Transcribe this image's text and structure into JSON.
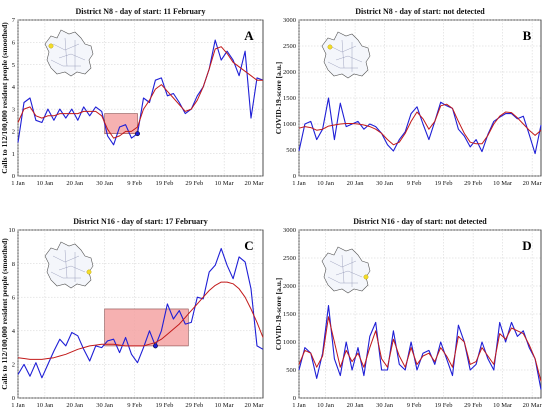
{
  "chart_data": [
    {
      "type": "line",
      "panel_letter": "A",
      "title": "District N8 - day of start: 11 February",
      "ylabel": "Calls to 112/100,000 resident people (smoothed)",
      "xlabel": "",
      "x_ticks": [
        "1 Jan",
        "10 Jan",
        "20 Jan",
        "30 Jan",
        "9 Feb",
        "19 Feb",
        "29 Feb",
        "10 Mar",
        "20 Mar"
      ],
      "y_ticks": [
        0,
        1,
        2,
        3,
        4,
        5,
        6,
        7
      ],
      "ylim": [
        0,
        7
      ],
      "x_days": [
        0,
        9,
        19,
        29,
        39,
        49,
        59,
        69,
        79
      ],
      "xlim": [
        0,
        82
      ],
      "grid": true,
      "highlight": {
        "x0": 29,
        "x1": 40,
        "y0": 1.9,
        "y1": 2.8
      },
      "marker": {
        "x": 40,
        "y": 1.9
      },
      "series": [
        {
          "color": "#1f1fd6",
          "x": [
            0,
            2,
            4,
            6,
            8,
            10,
            12,
            14,
            16,
            18,
            20,
            22,
            24,
            26,
            28,
            30,
            32,
            34,
            36,
            38,
            40,
            42,
            44,
            46,
            48,
            50,
            52,
            54,
            56,
            58,
            60,
            62,
            64,
            66,
            68,
            70,
            72,
            74,
            76,
            78,
            80,
            82
          ],
          "values": [
            1.5,
            3.3,
            3.5,
            2.5,
            2.4,
            3.0,
            2.5,
            3.0,
            2.6,
            3.0,
            2.5,
            3.1,
            2.7,
            3.1,
            2.9,
            1.8,
            1.4,
            2.2,
            2.3,
            1.7,
            1.9,
            3.5,
            3.3,
            4.3,
            4.4,
            3.6,
            3.7,
            3.3,
            2.8,
            3.0,
            3.6,
            4.0,
            4.8,
            6.1,
            5.2,
            5.6,
            5.2,
            4.5,
            5.6,
            2.6,
            4.4,
            4.3
          ]
        },
        {
          "color": "#c21a1a",
          "x": [
            0,
            2,
            4,
            6,
            8,
            10,
            12,
            14,
            16,
            18,
            20,
            22,
            24,
            26,
            28,
            30,
            32,
            34,
            36,
            38,
            40,
            42,
            44,
            46,
            48,
            50,
            52,
            54,
            56,
            58,
            60,
            62,
            64,
            66,
            68,
            70,
            72,
            74,
            76,
            78,
            80,
            82
          ],
          "values": [
            2.4,
            3.0,
            3.1,
            2.7,
            2.6,
            2.7,
            2.7,
            2.8,
            2.8,
            2.8,
            2.8,
            2.9,
            2.9,
            2.9,
            2.7,
            2.1,
            1.7,
            1.8,
            2.0,
            2.0,
            2.2,
            3.0,
            3.4,
            3.9,
            4.1,
            3.8,
            3.5,
            3.2,
            2.9,
            3.0,
            3.4,
            4.0,
            4.8,
            5.7,
            5.8,
            5.5,
            5.1,
            4.9,
            4.7,
            4.5,
            4.3,
            4.3
          ]
        }
      ]
    },
    {
      "type": "line",
      "panel_letter": "B",
      "title": "District N8 - day of start: not detected",
      "ylabel": "COVID-19-score [a.u.]",
      "xlabel": "",
      "x_ticks": [
        "1 Jan",
        "10 Jan",
        "20 Jan",
        "30 Jan",
        "9 Feb",
        "19 Feb",
        "29 Feb",
        "10 Mar",
        "20 Mar"
      ],
      "y_ticks": [
        0,
        500,
        1000,
        1500,
        2000,
        2500,
        3000
      ],
      "ylim": [
        0,
        3000
      ],
      "x_days": [
        0,
        9,
        19,
        29,
        39,
        49,
        59,
        69,
        79
      ],
      "xlim": [
        0,
        82
      ],
      "grid": true,
      "series": [
        {
          "color": "#1f1fd6",
          "x": [
            0,
            2,
            4,
            6,
            8,
            10,
            12,
            14,
            16,
            18,
            20,
            22,
            24,
            26,
            28,
            30,
            32,
            34,
            36,
            38,
            40,
            42,
            44,
            46,
            48,
            50,
            52,
            54,
            56,
            58,
            60,
            62,
            64,
            66,
            68,
            70,
            72,
            74,
            76,
            78,
            80,
            82
          ],
          "values": [
            480,
            1000,
            1050,
            700,
            900,
            1500,
            700,
            1400,
            950,
            1000,
            1050,
            900,
            1000,
            950,
            820,
            600,
            480,
            700,
            850,
            1200,
            1330,
            1000,
            700,
            1050,
            1420,
            1350,
            1300,
            900,
            770,
            560,
            700,
            470,
            800,
            1050,
            1130,
            1200,
            1200,
            1100,
            1150,
            800,
            430,
            980
          ]
        },
        {
          "color": "#c21a1a",
          "x": [
            0,
            2,
            4,
            6,
            8,
            10,
            12,
            14,
            16,
            18,
            20,
            22,
            24,
            26,
            28,
            30,
            32,
            34,
            36,
            38,
            40,
            42,
            44,
            46,
            48,
            50,
            52,
            54,
            56,
            58,
            60,
            62,
            64,
            66,
            68,
            70,
            72,
            74,
            76,
            78,
            80,
            82
          ],
          "values": [
            920,
            950,
            930,
            880,
            900,
            960,
            980,
            1000,
            1010,
            1010,
            1000,
            980,
            950,
            900,
            820,
            700,
            600,
            650,
            820,
            1050,
            1230,
            1100,
            900,
            1050,
            1350,
            1380,
            1300,
            1050,
            820,
            650,
            620,
            620,
            780,
            1000,
            1150,
            1230,
            1220,
            1120,
            1000,
            880,
            780,
            880
          ]
        }
      ]
    },
    {
      "type": "line",
      "panel_letter": "C",
      "title": "District N16 - day of start: 17 February",
      "ylabel": "Calls to 112/100,000 resident people (smoothed)",
      "xlabel": "",
      "x_ticks": [
        "1 Jan",
        "10 Jan",
        "20 Jan",
        "30 Jan",
        "9 Feb",
        "19 Feb",
        "29 Feb",
        "10 Mar",
        "20 Mar"
      ],
      "y_ticks": [
        0,
        2,
        4,
        6,
        8,
        10
      ],
      "ylim": [
        0,
        10
      ],
      "x_days": [
        0,
        9,
        19,
        29,
        39,
        49,
        59,
        69,
        79
      ],
      "xlim": [
        0,
        82
      ],
      "grid": true,
      "highlight": {
        "x0": 29,
        "x1": 57,
        "y0": 3.1,
        "y1": 5.3
      },
      "marker": {
        "x": 46,
        "y": 3.1
      },
      "series": [
        {
          "color": "#1f1fd6",
          "x": [
            0,
            2,
            4,
            6,
            8,
            10,
            12,
            14,
            16,
            18,
            20,
            22,
            24,
            26,
            28,
            30,
            32,
            34,
            36,
            38,
            40,
            42,
            44,
            46,
            48,
            50,
            52,
            54,
            56,
            58,
            60,
            62,
            64,
            66,
            68,
            70,
            72,
            74,
            76,
            78,
            80,
            82
          ],
          "values": [
            1.4,
            2.0,
            1.3,
            2.1,
            1.2,
            2.0,
            2.8,
            3.5,
            3.1,
            3.9,
            3.7,
            2.9,
            2.2,
            3.1,
            3.0,
            3.4,
            3.5,
            2.7,
            3.6,
            2.6,
            2.1,
            3.0,
            4.0,
            3.1,
            4.0,
            5.6,
            4.7,
            5.2,
            4.4,
            4.5,
            6.0,
            5.9,
            7.5,
            7.9,
            8.9,
            7.9,
            7.1,
            8.4,
            8.1,
            6.5,
            3.1,
            2.9
          ]
        },
        {
          "color": "#c21a1a",
          "x": [
            0,
            2,
            4,
            6,
            8,
            10,
            12,
            14,
            16,
            18,
            20,
            22,
            24,
            26,
            28,
            30,
            32,
            34,
            36,
            38,
            40,
            42,
            44,
            46,
            48,
            50,
            52,
            54,
            56,
            58,
            60,
            62,
            64,
            66,
            68,
            70,
            72,
            74,
            76,
            78,
            80,
            82
          ],
          "values": [
            2.4,
            2.35,
            2.3,
            2.3,
            2.3,
            2.35,
            2.4,
            2.5,
            2.6,
            2.75,
            2.9,
            3.0,
            3.1,
            3.15,
            3.2,
            3.2,
            3.2,
            3.15,
            3.1,
            3.1,
            3.1,
            3.1,
            3.2,
            3.3,
            3.5,
            3.8,
            4.1,
            4.4,
            4.8,
            5.2,
            5.6,
            6.0,
            6.4,
            6.7,
            6.9,
            6.9,
            6.8,
            6.5,
            6.0,
            5.3,
            4.5,
            3.6
          ]
        }
      ]
    },
    {
      "type": "line",
      "panel_letter": "D",
      "title": "District N16 - day of start: not detected",
      "ylabel": "COVID-19-score [a.u.]",
      "xlabel": "",
      "x_ticks": [
        "1 Jan",
        "10 Jan",
        "20 Jan",
        "30 Jan",
        "9 Feb",
        "19 Feb",
        "29 Feb",
        "10 Mar",
        "20 Mar"
      ],
      "y_ticks": [
        0,
        500,
        1000,
        1500,
        2000,
        2500,
        3000
      ],
      "ylim": [
        0,
        3000
      ],
      "x_days": [
        0,
        9,
        19,
        29,
        39,
        49,
        59,
        69,
        79
      ],
      "xlim": [
        0,
        82
      ],
      "grid": true,
      "series": [
        {
          "color": "#1f1fd6",
          "x": [
            0,
            2,
            4,
            6,
            8,
            10,
            12,
            14,
            16,
            18,
            20,
            22,
            24,
            26,
            28,
            30,
            32,
            34,
            36,
            38,
            40,
            42,
            44,
            46,
            48,
            50,
            52,
            54,
            56,
            58,
            60,
            62,
            64,
            66,
            68,
            70,
            72,
            74,
            76,
            78,
            80,
            82
          ],
          "values": [
            500,
            900,
            800,
            350,
            800,
            1650,
            700,
            400,
            1000,
            500,
            900,
            400,
            1100,
            1350,
            500,
            500,
            1200,
            600,
            500,
            1000,
            500,
            800,
            850,
            600,
            1000,
            700,
            400,
            1300,
            1000,
            500,
            600,
            1000,
            700,
            500,
            1350,
            1000,
            1350,
            1100,
            1200,
            900,
            700,
            150
          ]
        },
        {
          "color": "#c21a1a",
          "x": [
            0,
            2,
            4,
            6,
            8,
            10,
            12,
            14,
            16,
            18,
            20,
            22,
            24,
            26,
            28,
            30,
            32,
            34,
            36,
            38,
            40,
            42,
            44,
            46,
            48,
            50,
            52,
            54,
            56,
            58,
            60,
            62,
            64,
            66,
            68,
            70,
            72,
            74,
            76,
            78,
            80,
            82
          ],
          "values": [
            600,
            850,
            800,
            550,
            750,
            1450,
            1000,
            550,
            850,
            650,
            800,
            550,
            900,
            1200,
            700,
            550,
            1050,
            750,
            550,
            900,
            600,
            750,
            800,
            650,
            900,
            750,
            550,
            1100,
            1000,
            600,
            650,
            900,
            750,
            600,
            1150,
            1050,
            1250,
            1200,
            1150,
            950,
            700,
            300
          ]
        }
      ]
    }
  ]
}
